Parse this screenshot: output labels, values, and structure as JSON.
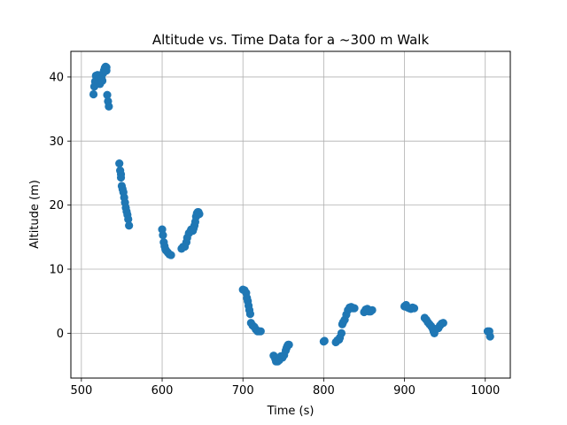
{
  "chart_data": {
    "type": "scatter",
    "title": "Altitude vs. Time Data for a ~300 m Walk",
    "xlabel": "Time (s)",
    "ylabel": "Altitude (m)",
    "xlim": [
      487,
      1031
    ],
    "ylim": [
      -7,
      44
    ],
    "xticks": [
      500,
      600,
      700,
      800,
      900,
      1000
    ],
    "yticks": [
      0,
      10,
      20,
      30,
      40
    ],
    "grid": true,
    "color": "#1f77b4",
    "points": [
      [
        515,
        37.3
      ],
      [
        516,
        38.5
      ],
      [
        517,
        39.3
      ],
      [
        518,
        40.2
      ],
      [
        519,
        39.6
      ],
      [
        520,
        40.3
      ],
      [
        521,
        39.2
      ],
      [
        522,
        39.8
      ],
      [
        523,
        38.9
      ],
      [
        524,
        39.5
      ],
      [
        525,
        39.8
      ],
      [
        526,
        39.4
      ],
      [
        527,
        40.6
      ],
      [
        528,
        41.0
      ],
      [
        529,
        41.4
      ],
      [
        530,
        41.6
      ],
      [
        531,
        41.0
      ],
      [
        531,
        41.5
      ],
      [
        532,
        37.2
      ],
      [
        533,
        36.2
      ],
      [
        534,
        35.4
      ],
      [
        547,
        26.5
      ],
      [
        548,
        25.4
      ],
      [
        549,
        24.8
      ],
      [
        549,
        24.3
      ],
      [
        550,
        23.0
      ],
      [
        551,
        22.5
      ],
      [
        552,
        22.0
      ],
      [
        553,
        21.2
      ],
      [
        554,
        20.4
      ],
      [
        555,
        19.6
      ],
      [
        556,
        19.0
      ],
      [
        557,
        18.5
      ],
      [
        558,
        17.8
      ],
      [
        559,
        16.8
      ],
      [
        600,
        16.2
      ],
      [
        601,
        15.3
      ],
      [
        602,
        14.2
      ],
      [
        603,
        13.6
      ],
      [
        604,
        13.1
      ],
      [
        605,
        12.9
      ],
      [
        607,
        12.6
      ],
      [
        609,
        12.3
      ],
      [
        611,
        12.2
      ],
      [
        624,
        13.2
      ],
      [
        626,
        13.5
      ],
      [
        628,
        13.5
      ],
      [
        630,
        14.2
      ],
      [
        631,
        14.9
      ],
      [
        633,
        15.6
      ],
      [
        635,
        15.9
      ],
      [
        636,
        16.2
      ],
      [
        638,
        16.0
      ],
      [
        639,
        16.4
      ],
      [
        640,
        16.8
      ],
      [
        641,
        17.4
      ],
      [
        642,
        18.2
      ],
      [
        643,
        18.7
      ],
      [
        644,
        18.9
      ],
      [
        645,
        18.9
      ],
      [
        646,
        18.6
      ],
      [
        700,
        6.8
      ],
      [
        702,
        6.7
      ],
      [
        704,
        6.3
      ],
      [
        705,
        5.5
      ],
      [
        706,
        5.0
      ],
      [
        707,
        4.3
      ],
      [
        708,
        3.6
      ],
      [
        709,
        3.0
      ],
      [
        710,
        1.6
      ],
      [
        712,
        1.2
      ],
      [
        714,
        1.0
      ],
      [
        716,
        0.6
      ],
      [
        718,
        0.3
      ],
      [
        720,
        0.3
      ],
      [
        722,
        0.3
      ],
      [
        738,
        -3.5
      ],
      [
        740,
        -4.0
      ],
      [
        741,
        -4.4
      ],
      [
        743,
        -4.4
      ],
      [
        745,
        -4.2
      ],
      [
        747,
        -3.6
      ],
      [
        749,
        -3.8
      ],
      [
        751,
        -3.4
      ],
      [
        753,
        -2.7
      ],
      [
        754,
        -2.3
      ],
      [
        755,
        -2.0
      ],
      [
        756,
        -1.8
      ],
      [
        757,
        -1.8
      ],
      [
        800,
        -1.3
      ],
      [
        801,
        -1.2
      ],
      [
        815,
        -1.4
      ],
      [
        817,
        -1.1
      ],
      [
        819,
        -1.0
      ],
      [
        820,
        -0.7
      ],
      [
        822,
        0.0
      ],
      [
        823,
        1.4
      ],
      [
        824,
        1.7
      ],
      [
        826,
        2.1
      ],
      [
        828,
        2.9
      ],
      [
        830,
        3.6
      ],
      [
        832,
        4.0
      ],
      [
        834,
        4.1
      ],
      [
        836,
        3.9
      ],
      [
        838,
        3.9
      ],
      [
        850,
        3.3
      ],
      [
        852,
        3.7
      ],
      [
        854,
        3.8
      ],
      [
        856,
        3.4
      ],
      [
        858,
        3.4
      ],
      [
        860,
        3.6
      ],
      [
        900,
        4.2
      ],
      [
        902,
        4.4
      ],
      [
        904,
        4.0
      ],
      [
        906,
        3.9
      ],
      [
        908,
        3.8
      ],
      [
        910,
        4.0
      ],
      [
        912,
        3.9
      ],
      [
        925,
        2.4
      ],
      [
        927,
        2.1
      ],
      [
        929,
        1.7
      ],
      [
        931,
        1.4
      ],
      [
        933,
        1.1
      ],
      [
        935,
        0.7
      ],
      [
        936,
        0.3
      ],
      [
        937,
        0.0
      ],
      [
        938,
        0.6
      ],
      [
        940,
        0.7
      ],
      [
        942,
        0.8
      ],
      [
        944,
        1.2
      ],
      [
        946,
        1.5
      ],
      [
        948,
        1.6
      ],
      [
        1003,
        0.3
      ],
      [
        1005,
        0.3
      ],
      [
        1006,
        -0.5
      ]
    ]
  }
}
